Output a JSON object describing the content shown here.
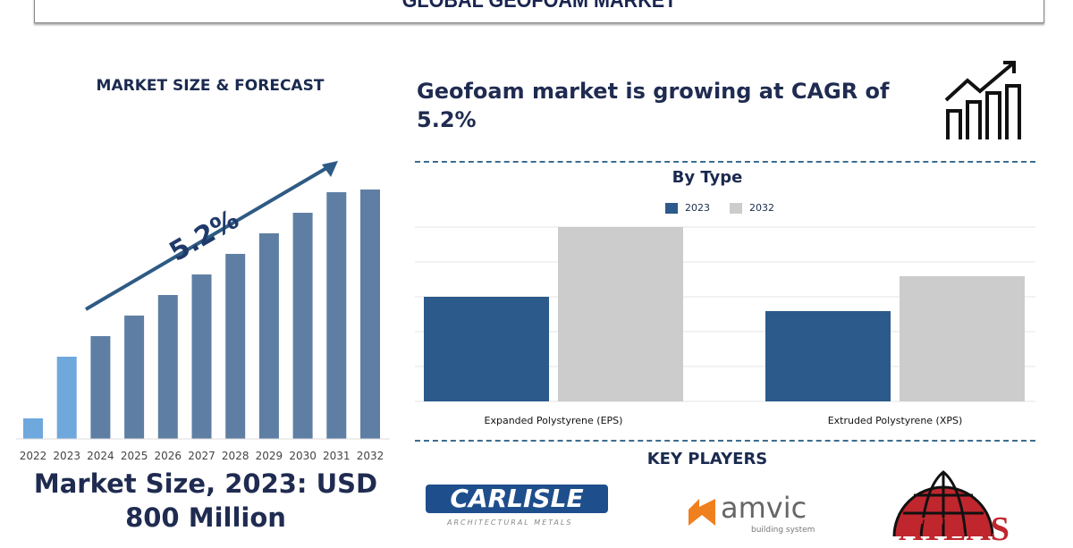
{
  "title": "GLOBAL GEOFOAM MARKET",
  "left": {
    "heading": "MARKET SIZE & FORECAST",
    "cagr_label": "5.2%",
    "market_size": "Market Size, 2023: USD 800 Million"
  },
  "right": {
    "headline": "Geofoam market is growing at CAGR of 5.2%",
    "key_players_heading": "KEY PLAYERS",
    "players": [
      {
        "name": "CARLISLE",
        "sub": "ARCHITECTURAL METALS"
      },
      {
        "name": "amvic",
        "sub": "building system"
      },
      {
        "name": "ATLAS"
      }
    ]
  },
  "chart_data": [
    {
      "type": "bar",
      "title": "",
      "categories": [
        "2022",
        "2023",
        "2024",
        "2025",
        "2026",
        "2027",
        "2028",
        "2029",
        "2030",
        "2031",
        "2032"
      ],
      "values": [
        23,
        92,
        115,
        138,
        161,
        184,
        207,
        230,
        253,
        276,
        279
      ],
      "note": "relative heights, no axis values shown",
      "colors": [
        "#6fa8dc",
        "#6fa8dc",
        "#5e7fa3",
        "#5e7fa3",
        "#5e7fa3",
        "#5e7fa3",
        "#5e7fa3",
        "#5e7fa3",
        "#5e7fa3",
        "#5e7fa3",
        "#5e7fa3"
      ]
    },
    {
      "type": "bar",
      "title": "By Type",
      "categories": [
        "Expanded Polystyrene (EPS)",
        "Extruded Polystyrene (XPS)"
      ],
      "series": [
        {
          "name": "2023",
          "values": [
            117,
            101
          ],
          "color": "#2c5a8a"
        },
        {
          "name": "2032",
          "values": [
            195,
            140
          ],
          "color": "#cccccc"
        }
      ],
      "ylim": [
        0,
        195
      ],
      "grid": true,
      "legend": "top-center"
    }
  ]
}
